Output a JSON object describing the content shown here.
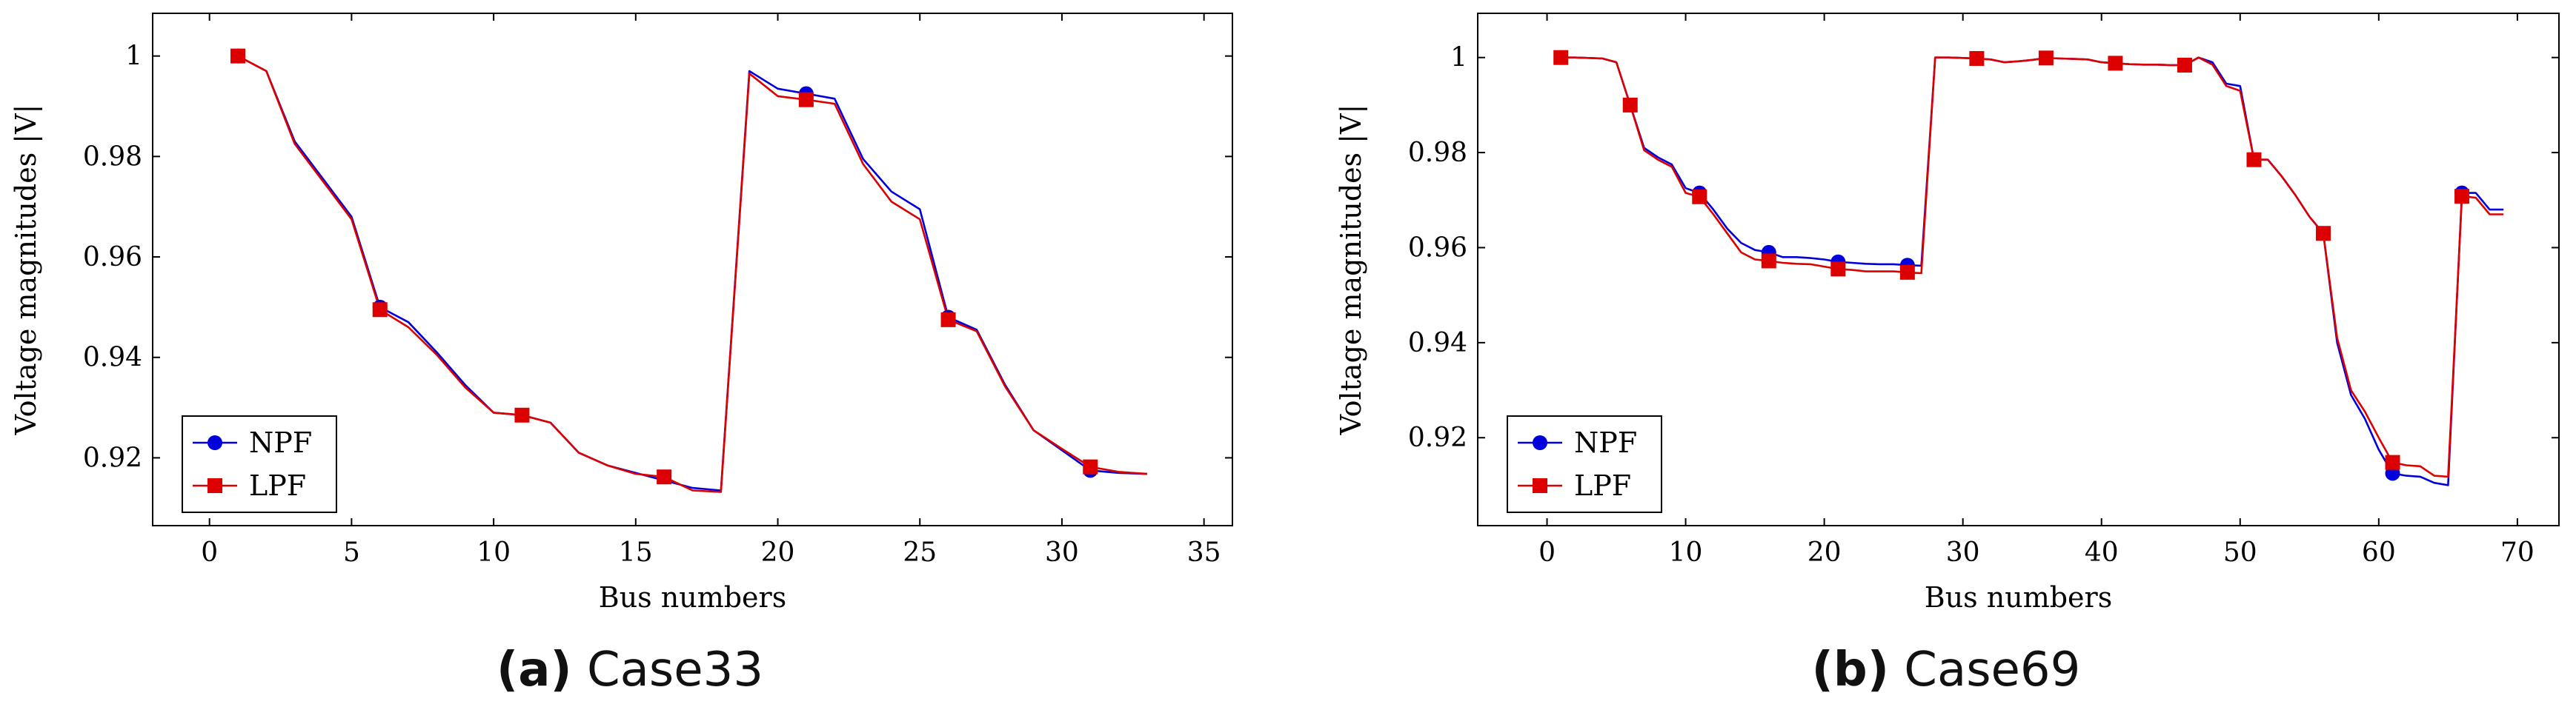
{
  "chart_data": [
    {
      "panel_label": "(a)",
      "caption": "Case33",
      "type": "line",
      "xlabel": "Bus numbers",
      "ylabel": "Voltage magnitudes |V|",
      "xlim": [
        -2,
        36
      ],
      "ylim": [
        0.9065,
        1.0085
      ],
      "xticks": [
        0,
        5,
        10,
        15,
        20,
        25,
        30,
        35
      ],
      "yticks": [
        0.92,
        0.94,
        0.96,
        0.98,
        1
      ],
      "ytick_labels": [
        "0.92",
        "0.94",
        "0.96",
        "0.98",
        "1"
      ],
      "legend": {
        "position": "bottom-left",
        "entries": [
          "NPF",
          "LPF"
        ]
      },
      "series": [
        {
          "name": "NPF",
          "color": "#0000dd",
          "marker": "circle",
          "x": [
            1,
            2,
            3,
            4,
            5,
            6,
            7,
            8,
            9,
            10,
            11,
            12,
            13,
            14,
            15,
            16,
            17,
            18,
            19,
            20,
            21,
            22,
            23,
            24,
            25,
            26,
            27,
            28,
            29,
            30,
            31,
            32,
            33
          ],
          "y": [
            1.0,
            0.997,
            0.983,
            0.9755,
            0.968,
            0.95,
            0.947,
            0.941,
            0.9345,
            0.929,
            0.9285,
            0.927,
            0.921,
            0.9185,
            0.917,
            0.9155,
            0.914,
            0.9135,
            0.997,
            0.9935,
            0.9925,
            0.9915,
            0.9795,
            0.973,
            0.9695,
            0.948,
            0.9455,
            0.9345,
            0.9255,
            0.9215,
            0.9175,
            0.917,
            0.9168
          ],
          "marker_x": [
            1,
            6,
            21,
            26,
            31
          ]
        },
        {
          "name": "LPF",
          "color": "#dd0000",
          "marker": "square",
          "x": [
            1,
            2,
            3,
            4,
            5,
            6,
            7,
            8,
            9,
            10,
            11,
            12,
            13,
            14,
            15,
            16,
            17,
            18,
            19,
            20,
            21,
            22,
            23,
            24,
            25,
            26,
            27,
            28,
            29,
            30,
            31,
            32,
            33
          ],
          "y": [
            1.0,
            0.997,
            0.9825,
            0.975,
            0.9675,
            0.9495,
            0.946,
            0.9405,
            0.934,
            0.929,
            0.9285,
            0.927,
            0.921,
            0.9185,
            0.9168,
            0.9162,
            0.9135,
            0.9132,
            0.9965,
            0.992,
            0.9913,
            0.9905,
            0.9785,
            0.971,
            0.9675,
            0.9475,
            0.9452,
            0.9342,
            0.9255,
            0.9218,
            0.9182,
            0.9172,
            0.9168
          ],
          "marker_x": [
            1,
            6,
            11,
            16,
            21,
            26,
            31
          ]
        }
      ]
    },
    {
      "panel_label": "(b)",
      "caption": "Case69",
      "type": "line",
      "xlabel": "Bus numbers",
      "ylabel": "Voltage magnitudes |V|",
      "xlim": [
        -5,
        73
      ],
      "ylim": [
        0.9015,
        1.0093
      ],
      "xticks": [
        0,
        10,
        20,
        30,
        40,
        50,
        60,
        70
      ],
      "yticks": [
        0.92,
        0.94,
        0.96,
        0.98,
        1
      ],
      "ytick_labels": [
        "0.92",
        "0.94",
        "0.96",
        "0.98",
        "1"
      ],
      "legend": {
        "position": "bottom-left",
        "entries": [
          "NPF",
          "LPF"
        ]
      },
      "series": [
        {
          "name": "NPF",
          "color": "#0000dd",
          "marker": "circle",
          "x": [
            1,
            2,
            3,
            4,
            5,
            6,
            7,
            8,
            9,
            10,
            11,
            12,
            13,
            14,
            15,
            16,
            17,
            18,
            19,
            20,
            21,
            22,
            23,
            24,
            25,
            26,
            27,
            28,
            29,
            30,
            31,
            32,
            33,
            34,
            35,
            36,
            37,
            38,
            39,
            40,
            41,
            42,
            43,
            44,
            45,
            46,
            47,
            48,
            49,
            50,
            51,
            52,
            53,
            54,
            55,
            56,
            57,
            58,
            59,
            60,
            61,
            62,
            63,
            64,
            65,
            66,
            67,
            68,
            69
          ],
          "y": [
            1.0,
            1.0,
            0.9999,
            0.9998,
            0.999,
            0.99,
            0.981,
            0.979,
            0.9775,
            0.9725,
            0.9715,
            0.968,
            0.964,
            0.961,
            0.9595,
            0.959,
            0.958,
            0.958,
            0.9578,
            0.9575,
            0.957,
            0.9568,
            0.9566,
            0.9565,
            0.9565,
            0.9563,
            0.9562,
            1.0,
            1.0,
            0.9999,
            0.9998,
            0.9996,
            0.999,
            0.9992,
            0.9995,
            0.9999,
            0.9998,
            0.9997,
            0.9996,
            0.999,
            0.9988,
            0.9986,
            0.9985,
            0.9985,
            0.9984,
            0.9984,
            1.0,
            0.999,
            0.9945,
            0.994,
            0.9785,
            0.9785,
            0.975,
            0.971,
            0.9665,
            0.963,
            0.94,
            0.929,
            0.924,
            0.9175,
            0.9125,
            0.912,
            0.9118,
            0.9105,
            0.91,
            0.9715,
            0.9715,
            0.968,
            0.968
          ],
          "marker_x": [
            11,
            16,
            21,
            26,
            61,
            66
          ]
        },
        {
          "name": "LPF",
          "color": "#dd0000",
          "marker": "square",
          "x": [
            1,
            2,
            3,
            4,
            5,
            6,
            7,
            8,
            9,
            10,
            11,
            12,
            13,
            14,
            15,
            16,
            17,
            18,
            19,
            20,
            21,
            22,
            23,
            24,
            25,
            26,
            27,
            28,
            29,
            30,
            31,
            32,
            33,
            34,
            35,
            36,
            37,
            38,
            39,
            40,
            41,
            42,
            43,
            44,
            45,
            46,
            47,
            48,
            49,
            50,
            51,
            52,
            53,
            54,
            55,
            56,
            57,
            58,
            59,
            60,
            61,
            62,
            63,
            64,
            65,
            66,
            67,
            68,
            69
          ],
          "y": [
            1.0,
            1.0,
            0.9999,
            0.9998,
            0.999,
            0.99,
            0.9805,
            0.9785,
            0.977,
            0.9715,
            0.9707,
            0.967,
            0.963,
            0.959,
            0.9575,
            0.9572,
            0.9568,
            0.9566,
            0.9565,
            0.956,
            0.9555,
            0.9553,
            0.955,
            0.955,
            0.955,
            0.9548,
            0.9546,
            1.0,
            1.0,
            0.9999,
            0.9998,
            0.9996,
            0.999,
            0.9992,
            0.9995,
            0.9999,
            0.9998,
            0.9997,
            0.9996,
            0.999,
            0.9988,
            0.9986,
            0.9985,
            0.9985,
            0.9984,
            0.9984,
            1.0,
            0.9985,
            0.994,
            0.993,
            0.9785,
            0.9785,
            0.975,
            0.971,
            0.9665,
            0.963,
            0.941,
            0.93,
            0.9255,
            0.92,
            0.9148,
            0.9142,
            0.914,
            0.912,
            0.9118,
            0.9708,
            0.9705,
            0.967,
            0.967
          ],
          "marker_x": [
            1,
            6,
            11,
            16,
            21,
            26,
            31,
            36,
            41,
            46,
            51,
            56,
            61,
            66
          ]
        }
      ]
    }
  ]
}
